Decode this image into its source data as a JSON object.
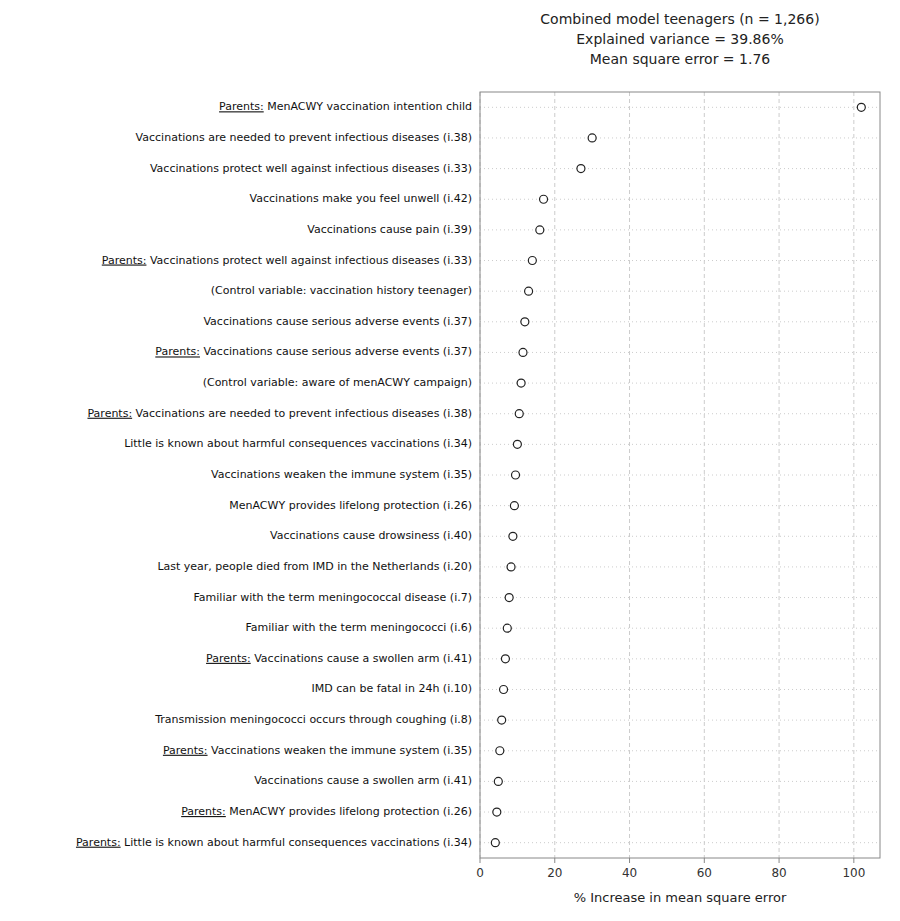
{
  "chart_data": {
    "type": "dot",
    "orientation": "horizontal",
    "title": [
      "Combined model teenagers (n = 1,266)",
      "Explained variance = 39.86%",
      "Mean square error = 1.76"
    ],
    "xlabel": "% Increase in mean square error",
    "xlim": [
      0,
      107
    ],
    "xticks": [
      0,
      20,
      40,
      60,
      80,
      100
    ],
    "grid": true,
    "marker": "circle",
    "color": "#222222",
    "categories": [
      "Parents: MenACWY vaccination intention child",
      "Vaccinations are needed to prevent infectious diseases  (i.38)",
      "Vaccinations protect well against infectious diseases (i.33)",
      "Vaccinations make you feel unwell (i.42)",
      "Vaccinations cause pain (i.39)",
      "Parents: Vaccinations protect well against infectious diseases (i.33)",
      "(Control variable: vaccination history teenager)",
      "Vaccinations cause serious adverse events (i.37)",
      "Parents: Vaccinations cause serious adverse events (i.37)",
      "(Control variable: aware of menACWY campaign)",
      "Parents: Vaccinations are needed to prevent infectious diseases  (i.38)",
      "Little is known about harmful consequences vaccinations (i.34)",
      "Vaccinations weaken the immune system (i.35)",
      "MenACWY provides lifelong protection (i.26)",
      "Vaccinations cause drowsiness (i.40)",
      "Last year, people died from IMD in the Netherlands (i.20)",
      "Familiar with the term meningococcal disease (i.7)",
      "Familiar with the term meningococci (i.6)",
      "Parents: Vaccinations cause a swollen arm (i.41)",
      "IMD can be fatal in 24h (i.10)",
      "Transmission meningococci occurs through coughing (i.8)",
      "Parents: Vaccinations weaken the immune system (i.35)",
      "Vaccinations cause a swollen arm (i.41)",
      "Parents: MenACWY provides lifelong protection (i.26)",
      "Parents: Little is known about harmful consequences vaccinations (i.34)"
    ],
    "values": [
      102,
      30,
      27,
      17,
      16,
      14,
      13,
      12,
      11.5,
      11,
      10.5,
      10,
      9.5,
      9.2,
      8.8,
      8.3,
      7.8,
      7.3,
      6.8,
      6.3,
      5.8,
      5.3,
      4.9,
      4.5,
      4.1
    ]
  }
}
